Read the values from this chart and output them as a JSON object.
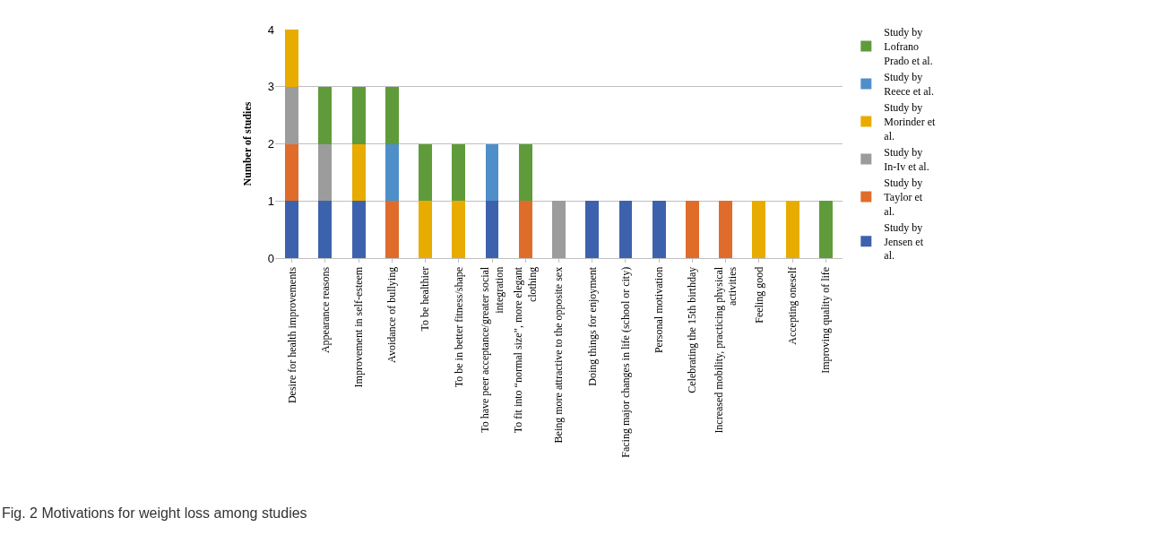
{
  "chart_data": {
    "type": "bar",
    "stacked": true,
    "ylabel": "Number of studies",
    "categories": [
      "Desire for health improvements",
      "Appearance reasons",
      "Improvement in self-esteem",
      "Avoidance of bullying",
      "To be healthier",
      "To be in better fitness/shape",
      "To have peer acceptance/greater social integration",
      "To fit into “normal size”, more elegant clothing",
      "Being more attractive to the opposite sex",
      "Doing things for enjoyment",
      "Facing major changes in life (school or city)",
      "Personal motivation",
      "Celebrating the 15th birthday",
      "Increased mobility, practicing physical activities",
      "Feeling good",
      "Accepting oneself",
      "Improving quality of life"
    ],
    "series": [
      {
        "name": "Study by Jensen et al.",
        "color": "#3d62ad",
        "values": [
          1,
          1,
          1,
          0,
          0,
          0,
          1,
          0,
          0,
          1,
          1,
          1,
          0,
          0,
          0,
          0,
          0
        ]
      },
      {
        "name": "Study by Taylor et al.",
        "color": "#e06c2c",
        "values": [
          1,
          0,
          0,
          1,
          0,
          0,
          0,
          1,
          0,
          0,
          0,
          0,
          1,
          1,
          0,
          0,
          0
        ]
      },
      {
        "name": "Study by In-Iv et al.",
        "color": "#9c9c9c",
        "values": [
          1,
          1,
          0,
          0,
          0,
          0,
          0,
          0,
          1,
          0,
          0,
          0,
          0,
          0,
          0,
          0,
          0
        ]
      },
      {
        "name": "Study by Morinder et al.",
        "color": "#e8ab00",
        "values": [
          1,
          0,
          1,
          0,
          1,
          1,
          0,
          0,
          0,
          0,
          0,
          0,
          0,
          0,
          1,
          1,
          0
        ]
      },
      {
        "name": "Study by Reece et al.",
        "color": "#4f8fc9",
        "values": [
          0,
          0,
          0,
          1,
          0,
          0,
          1,
          0,
          0,
          0,
          0,
          0,
          0,
          0,
          0,
          0,
          0
        ]
      },
      {
        "name": "Study by Lofrano Prado et al.",
        "color": "#5f9b3a",
        "values": [
          0,
          1,
          1,
          1,
          1,
          1,
          0,
          1,
          0,
          0,
          0,
          0,
          0,
          0,
          0,
          0,
          1
        ]
      }
    ],
    "ylim": [
      0,
      4
    ],
    "yticks": [
      0,
      1,
      2,
      3,
      4
    ],
    "grid": "y",
    "legend": "right",
    "annotations": [
      "Fig. 2 Motivations for weight loss among studies"
    ]
  }
}
